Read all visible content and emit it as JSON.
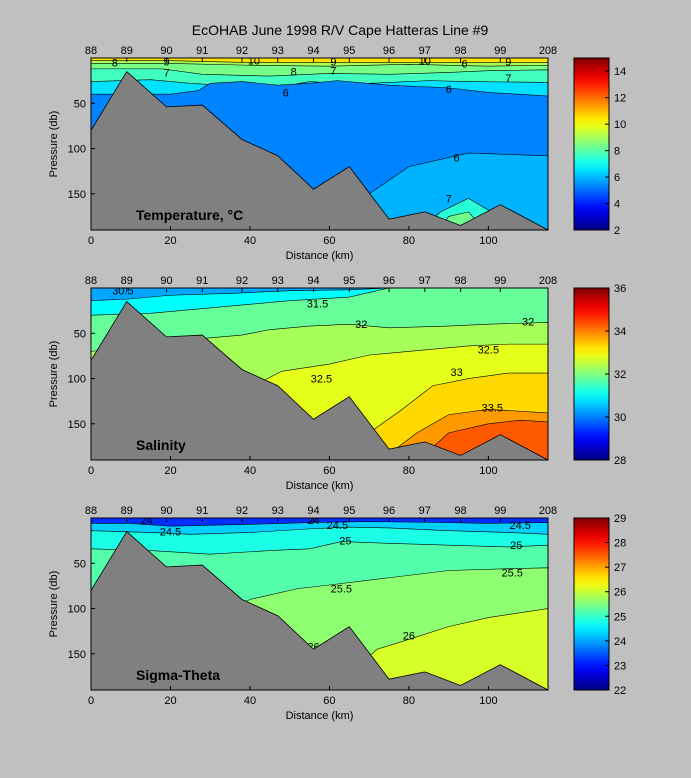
{
  "title": "EcOHAB   June 1998   R/V Cape Hatteras   Line #9",
  "colorscale": "jet",
  "chart_data": [
    {
      "type": "heatmap",
      "variable": "Temperature",
      "label": "Temperature, °C",
      "xlabel": "Distance (km)",
      "ylabel": "Pressure (db)",
      "xlim": [
        0,
        115
      ],
      "ylim": [
        190,
        0
      ],
      "y_reversed": true,
      "xticks": [
        0,
        20,
        40,
        60,
        80,
        100
      ],
      "yticks": [
        50,
        100,
        150
      ],
      "stations": [
        "88",
        "89",
        "90",
        "91",
        "92",
        "93",
        "94",
        "95",
        "96",
        "97",
        "98",
        "99",
        "208"
      ],
      "station_km": [
        0,
        9,
        19,
        28,
        38,
        47,
        56,
        65,
        75,
        84,
        93,
        103,
        115
      ],
      "clim": [
        2,
        15
      ],
      "colorbar_ticks": [
        2,
        4,
        6,
        8,
        10,
        12,
        14
      ],
      "contour_labels": [
        {
          "text": "8",
          "x": 6,
          "y": 5
        },
        {
          "text": "9",
          "x": 19,
          "y": 4
        },
        {
          "text": "7",
          "x": 19,
          "y": 16
        },
        {
          "text": "10",
          "x": 41,
          "y": 3
        },
        {
          "text": "8",
          "x": 51,
          "y": 15
        },
        {
          "text": "6",
          "x": 49,
          "y": 38
        },
        {
          "text": "9",
          "x": 61,
          "y": 4
        },
        {
          "text": "7",
          "x": 61,
          "y": 14
        },
        {
          "text": "10",
          "x": 84,
          "y": 3
        },
        {
          "text": "6",
          "x": 94,
          "y": 6
        },
        {
          "text": "9",
          "x": 105,
          "y": 4
        },
        {
          "text": "7",
          "x": 105,
          "y": 22
        },
        {
          "text": "6",
          "x": 90,
          "y": 34
        },
        {
          "text": "6",
          "x": 92,
          "y": 110
        },
        {
          "text": "7",
          "x": 90,
          "y": 155
        }
      ],
      "bottom_depth": [
        80,
        15,
        54,
        52,
        90,
        108,
        145,
        120,
        178,
        170,
        185,
        162,
        190
      ]
    },
    {
      "type": "heatmap",
      "variable": "Salinity",
      "label": "Salinity",
      "xlabel": "Distance (km)",
      "ylabel": "Pressure (db)",
      "xlim": [
        0,
        115
      ],
      "ylim": [
        190,
        0
      ],
      "y_reversed": true,
      "xticks": [
        0,
        20,
        40,
        60,
        80,
        100
      ],
      "yticks": [
        50,
        100,
        150
      ],
      "stations": [
        "88",
        "89",
        "90",
        "91",
        "92",
        "93",
        "94",
        "95",
        "96",
        "97",
        "98",
        "99",
        "208"
      ],
      "station_km": [
        0,
        9,
        19,
        28,
        38,
        47,
        56,
        65,
        75,
        84,
        93,
        103,
        115
      ],
      "clim": [
        28,
        36
      ],
      "colorbar_ticks": [
        28,
        30,
        32,
        34,
        36
      ],
      "contour_labels": [
        {
          "text": "30.5",
          "x": 8,
          "y": 3
        },
        {
          "text": "31.5",
          "x": 57,
          "y": 17
        },
        {
          "text": "32",
          "x": 68,
          "y": 40
        },
        {
          "text": "32",
          "x": 110,
          "y": 37
        },
        {
          "text": "32.5",
          "x": 58,
          "y": 100
        },
        {
          "text": "32.5",
          "x": 100,
          "y": 68
        },
        {
          "text": "33",
          "x": 92,
          "y": 93
        },
        {
          "text": "33.5",
          "x": 101,
          "y": 132
        }
      ],
      "bottom_depth": [
        80,
        15,
        54,
        52,
        90,
        108,
        145,
        120,
        178,
        170,
        185,
        162,
        190
      ]
    },
    {
      "type": "heatmap",
      "variable": "Sigma-Theta",
      "label": "Sigma-Theta",
      "xlabel": "Distance (km)",
      "ylabel": "Pressure (db)",
      "xlim": [
        0,
        115
      ],
      "ylim": [
        190,
        0
      ],
      "y_reversed": true,
      "xticks": [
        0,
        20,
        40,
        60,
        80,
        100
      ],
      "yticks": [
        50,
        100,
        150
      ],
      "stations": [
        "88",
        "89",
        "90",
        "91",
        "92",
        "93",
        "94",
        "95",
        "96",
        "97",
        "98",
        "99",
        "208"
      ],
      "station_km": [
        0,
        9,
        19,
        28,
        38,
        47,
        56,
        65,
        75,
        84,
        93,
        103,
        115
      ],
      "clim": [
        22,
        29
      ],
      "colorbar_ticks": [
        22,
        23,
        24,
        25,
        26,
        27,
        28,
        29
      ],
      "contour_labels": [
        {
          "text": "24",
          "x": 14,
          "y": 2
        },
        {
          "text": "24.5",
          "x": 20,
          "y": 15
        },
        {
          "text": "24",
          "x": 56,
          "y": 2
        },
        {
          "text": "24.5",
          "x": 62,
          "y": 8
        },
        {
          "text": "25",
          "x": 64,
          "y": 25
        },
        {
          "text": "24.5",
          "x": 108,
          "y": 8
        },
        {
          "text": "25",
          "x": 107,
          "y": 30
        },
        {
          "text": "25.5",
          "x": 63,
          "y": 78
        },
        {
          "text": "25.5",
          "x": 106,
          "y": 60
        },
        {
          "text": "26",
          "x": 56,
          "y": 142
        },
        {
          "text": "26",
          "x": 80,
          "y": 130
        }
      ],
      "bottom_depth": [
        80,
        15,
        54,
        52,
        90,
        108,
        145,
        120,
        178,
        170,
        185,
        162,
        190
      ]
    }
  ]
}
